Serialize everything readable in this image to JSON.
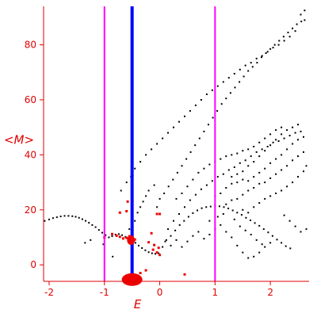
{
  "chart_data": {
    "type": "scatter",
    "title": "",
    "xlabel": "E",
    "ylabel": "<M>",
    "xlim": [
      -2.1,
      2.7
    ],
    "ylim": [
      -6,
      94
    ],
    "x_ticks": [
      -2,
      -1,
      0,
      1,
      2
    ],
    "y_ticks": [
      0,
      20,
      40,
      60,
      80
    ],
    "grid": false,
    "colors": {
      "axes": "#e00000",
      "tick_labels": "#e00000",
      "points_black": "#000000",
      "points_red": "#ee0000",
      "vertical_line_magenta": "#ff00ff",
      "vertical_line_blue": "#0000ff"
    },
    "vertical_lines": [
      {
        "x": -1.0,
        "color": "#ff00ff",
        "style": "thin"
      },
      {
        "x": -0.5,
        "color": "#0000ff",
        "style": "thick"
      },
      {
        "x": 1.0,
        "color": "#ff00ff",
        "style": "thin"
      }
    ],
    "big_red_markers": [
      {
        "x": -0.5,
        "y": -4.5
      },
      {
        "x": -0.52,
        "y": 9
      }
    ],
    "series": [
      {
        "color": "#000000",
        "points": [
          [
            -2.08,
            16
          ],
          [
            -2.0,
            16.5
          ],
          [
            -1.93,
            17
          ],
          [
            -1.86,
            17.3
          ],
          [
            -1.79,
            17.6
          ],
          [
            -1.72,
            17.8
          ],
          [
            -1.65,
            17.8
          ],
          [
            -1.58,
            17.7
          ],
          [
            -1.52,
            17.5
          ],
          [
            -1.46,
            17.1
          ],
          [
            -1.4,
            16.6
          ],
          [
            -1.34,
            16
          ],
          [
            -1.28,
            15.3
          ],
          [
            -1.22,
            14.5
          ],
          [
            -1.16,
            13.7
          ],
          [
            -1.1,
            12.7
          ],
          [
            -1.04,
            11.7
          ],
          [
            -0.98,
            10.8
          ],
          [
            -0.92,
            10
          ],
          [
            -0.86,
            10.4
          ],
          [
            -0.8,
            11
          ],
          [
            -0.74,
            11.2
          ],
          [
            -0.68,
            10.8
          ],
          [
            -0.62,
            10.2
          ],
          [
            -0.56,
            9.4
          ],
          [
            -0.5,
            8.8
          ],
          [
            -0.44,
            8
          ],
          [
            -0.38,
            7
          ],
          [
            -0.32,
            6.1
          ],
          [
            -0.26,
            5.3
          ],
          [
            -0.2,
            4.6
          ],
          [
            -0.14,
            4.2
          ],
          [
            -0.08,
            4
          ],
          [
            -0.02,
            4.2
          ],
          [
            -1.35,
            8
          ],
          [
            -1.25,
            9
          ],
          [
            -0.85,
            3
          ],
          [
            -1.02,
            7.5
          ],
          [
            0.05,
            6.5
          ],
          [
            0.12,
            9
          ],
          [
            0.2,
            10.5
          ],
          [
            0.28,
            12.5
          ],
          [
            0.36,
            14.5
          ],
          [
            0.44,
            16
          ],
          [
            0.52,
            17.5
          ],
          [
            0.6,
            18.8
          ],
          [
            0.68,
            19.8
          ],
          [
            0.76,
            20.6
          ],
          [
            0.84,
            21
          ],
          [
            0.92,
            21.2
          ],
          [
            1.0,
            21.5
          ],
          [
            1.08,
            21.3
          ],
          [
            1.16,
            21
          ],
          [
            1.24,
            20.5
          ],
          [
            1.32,
            19.8
          ],
          [
            1.4,
            19
          ],
          [
            1.48,
            18.2
          ],
          [
            1.56,
            17.1
          ],
          [
            1.64,
            16.2
          ],
          [
            1.72,
            15.2
          ],
          [
            1.8,
            14.2
          ],
          [
            1.88,
            13
          ],
          [
            1.96,
            11.8
          ],
          [
            2.04,
            10.5
          ],
          [
            2.12,
            9.2
          ],
          [
            2.2,
            8
          ],
          [
            2.28,
            6.8
          ],
          [
            2.36,
            6
          ],
          [
            0.1,
            8.5
          ],
          [
            0.2,
            7
          ],
          [
            0.3,
            9
          ],
          [
            0.4,
            6.5
          ],
          [
            0.5,
            8.5
          ],
          [
            0.6,
            10.5
          ],
          [
            0.7,
            12
          ],
          [
            0.8,
            9.5
          ],
          [
            0.9,
            11
          ],
          [
            1.0,
            13
          ],
          [
            1.1,
            14.5
          ],
          [
            1.2,
            12
          ],
          [
            1.3,
            10
          ],
          [
            1.4,
            7
          ],
          [
            1.5,
            4.5
          ],
          [
            1.6,
            2.5
          ],
          [
            1.7,
            3
          ],
          [
            1.8,
            4.5
          ],
          [
            1.9,
            6.5
          ],
          [
            2.0,
            8
          ],
          [
            0.15,
            13
          ],
          [
            0.25,
            16
          ],
          [
            0.35,
            18.5
          ],
          [
            0.45,
            21
          ],
          [
            0.55,
            23.5
          ],
          [
            0.65,
            25.5
          ],
          [
            0.75,
            27.5
          ],
          [
            0.85,
            29
          ],
          [
            0.95,
            30.5
          ],
          [
            1.05,
            32
          ],
          [
            1.15,
            33
          ],
          [
            1.25,
            34.5
          ],
          [
            1.35,
            35.5
          ],
          [
            1.45,
            37
          ],
          [
            1.55,
            38
          ],
          [
            1.65,
            39.5
          ],
          [
            1.75,
            41
          ],
          [
            1.85,
            42
          ],
          [
            1.95,
            43
          ],
          [
            2.05,
            44.5
          ],
          [
            2.15,
            45
          ],
          [
            2.25,
            46
          ],
          [
            2.35,
            47
          ],
          [
            2.45,
            48
          ],
          [
            2.55,
            48.5
          ],
          [
            0.3,
            24
          ],
          [
            0.4,
            26
          ],
          [
            0.5,
            28.5
          ],
          [
            0.6,
            31
          ],
          [
            0.7,
            33.5
          ],
          [
            0.8,
            35
          ],
          [
            0.9,
            36.5
          ],
          [
            1.0,
            37.5
          ],
          [
            1.1,
            38.5
          ],
          [
            1.2,
            39.5
          ],
          [
            1.3,
            40
          ],
          [
            1.4,
            40.5
          ],
          [
            1.5,
            41.5
          ],
          [
            1.6,
            42
          ],
          [
            1.7,
            43
          ],
          [
            1.8,
            44.5
          ],
          [
            1.9,
            46
          ],
          [
            2.0,
            47.5
          ],
          [
            2.1,
            49
          ],
          [
            2.2,
            50
          ],
          [
            1.3,
            32
          ],
          [
            1.4,
            33
          ],
          [
            1.5,
            34
          ],
          [
            1.6,
            36
          ],
          [
            1.7,
            37.5
          ],
          [
            1.8,
            39.5
          ],
          [
            1.9,
            41.5
          ],
          [
            2.0,
            43.5
          ],
          [
            2.1,
            45.5
          ],
          [
            2.2,
            47.5
          ],
          [
            2.3,
            49
          ],
          [
            2.4,
            50
          ],
          [
            2.5,
            51
          ],
          [
            1.0,
            25
          ],
          [
            1.1,
            26
          ],
          [
            1.2,
            28
          ],
          [
            1.3,
            29.5
          ],
          [
            1.4,
            30
          ],
          [
            1.5,
            31
          ],
          [
            1.6,
            30.5
          ],
          [
            1.7,
            32
          ],
          [
            1.8,
            33.5
          ],
          [
            1.9,
            35
          ],
          [
            2.0,
            37
          ],
          [
            2.1,
            38.5
          ],
          [
            2.2,
            40
          ],
          [
            2.3,
            42
          ],
          [
            2.4,
            44
          ],
          [
            2.5,
            45.5
          ],
          [
            2.6,
            46.5
          ],
          [
            1.2,
            22
          ],
          [
            1.3,
            23.5
          ],
          [
            1.4,
            24
          ],
          [
            1.5,
            25.5
          ],
          [
            1.6,
            27
          ],
          [
            1.7,
            28
          ],
          [
            1.8,
            29.5
          ],
          [
            1.9,
            30
          ],
          [
            2.0,
            31.5
          ],
          [
            2.1,
            33
          ],
          [
            2.2,
            34.5
          ],
          [
            2.3,
            36
          ],
          [
            2.4,
            38
          ],
          [
            2.5,
            39.5
          ],
          [
            2.6,
            41
          ],
          [
            1.5,
            20
          ],
          [
            1.6,
            19
          ],
          [
            1.7,
            21
          ],
          [
            1.8,
            22.5
          ],
          [
            1.9,
            24
          ],
          [
            2.0,
            25
          ],
          [
            2.1,
            26
          ],
          [
            2.2,
            27
          ],
          [
            2.3,
            28.5
          ],
          [
            2.4,
            30
          ],
          [
            2.5,
            32
          ],
          [
            2.6,
            34
          ],
          [
            2.65,
            36
          ],
          [
            0.9,
            16
          ],
          [
            1.05,
            17.5
          ],
          [
            1.15,
            18.5
          ],
          [
            1.35,
            16.5
          ],
          [
            1.45,
            14
          ],
          [
            1.55,
            12.5
          ],
          [
            1.65,
            11
          ],
          [
            1.75,
            9
          ],
          [
            1.85,
            7.5
          ],
          [
            2.25,
            18
          ],
          [
            2.35,
            16
          ],
          [
            2.45,
            14
          ],
          [
            2.55,
            12
          ],
          [
            2.65,
            13
          ],
          [
            -0.55,
            13
          ],
          [
            -0.45,
            16
          ],
          [
            -0.4,
            19
          ],
          [
            -0.35,
            21
          ],
          [
            -0.3,
            23
          ],
          [
            -0.25,
            25
          ],
          [
            -0.2,
            27
          ],
          [
            -0.1,
            29
          ],
          [
            -0.05,
            21
          ],
          [
            0.0,
            24
          ],
          [
            0.08,
            26
          ],
          [
            0.16,
            28.5
          ],
          [
            0.24,
            31
          ],
          [
            0.32,
            33.5
          ],
          [
            0.4,
            36
          ],
          [
            0.48,
            38.5
          ],
          [
            0.56,
            41
          ],
          [
            0.64,
            43.5
          ],
          [
            0.72,
            46
          ],
          [
            0.8,
            48.5
          ],
          [
            0.88,
            51
          ],
          [
            0.96,
            53.5
          ],
          [
            1.04,
            56
          ],
          [
            1.12,
            58.5
          ],
          [
            1.2,
            60.5
          ],
          [
            1.28,
            62.5
          ],
          [
            1.36,
            64.5
          ],
          [
            1.44,
            66.5
          ],
          [
            1.52,
            68.5
          ],
          [
            1.6,
            70.5
          ],
          [
            1.68,
            72
          ],
          [
            1.76,
            73.5
          ],
          [
            1.84,
            75.5
          ],
          [
            1.92,
            77
          ],
          [
            2.0,
            78.5
          ],
          [
            2.08,
            80
          ],
          [
            2.16,
            81.5
          ],
          [
            2.24,
            83
          ],
          [
            2.32,
            84.5
          ],
          [
            2.4,
            86
          ],
          [
            2.48,
            87.5
          ],
          [
            2.56,
            88.5
          ],
          [
            2.62,
            89
          ],
          [
            -0.7,
            27
          ],
          [
            -0.6,
            30
          ],
          [
            -0.52,
            32
          ],
          [
            -0.45,
            35
          ],
          [
            -0.35,
            37.5
          ],
          [
            -0.25,
            40
          ],
          [
            -0.15,
            42
          ],
          [
            -0.05,
            44
          ],
          [
            0.05,
            46
          ],
          [
            0.15,
            48
          ],
          [
            0.25,
            50
          ],
          [
            0.35,
            52
          ],
          [
            0.45,
            54
          ],
          [
            0.55,
            56
          ],
          [
            0.65,
            58
          ],
          [
            0.75,
            60
          ],
          [
            0.85,
            62
          ],
          [
            0.95,
            63.5
          ],
          [
            1.05,
            65
          ],
          [
            1.15,
            66.5
          ],
          [
            1.25,
            68
          ],
          [
            1.35,
            69.5
          ],
          [
            1.45,
            71
          ],
          [
            1.55,
            72.5
          ],
          [
            1.65,
            73.5
          ],
          [
            1.75,
            75
          ],
          [
            1.85,
            76
          ],
          [
            1.95,
            77.5
          ],
          [
            2.05,
            79
          ],
          [
            2.15,
            80
          ],
          [
            2.25,
            81.5
          ],
          [
            2.35,
            83
          ],
          [
            2.45,
            85
          ],
          [
            2.55,
            91
          ],
          [
            2.62,
            92.5
          ]
        ]
      },
      {
        "color": "#ee0000",
        "points": [
          [
            -1.0,
            10
          ],
          [
            -0.86,
            11.2
          ],
          [
            -0.78,
            10.6
          ],
          [
            -0.72,
            10.2
          ],
          [
            -0.66,
            9.6
          ],
          [
            -0.6,
            9.8
          ],
          [
            -0.55,
            10.4
          ],
          [
            -0.45,
            9.2
          ],
          [
            -0.2,
            8.2
          ],
          [
            -0.12,
            5.5
          ],
          [
            -0.05,
            4.5
          ],
          [
            0.0,
            3.6
          ],
          [
            -0.1,
            7.2
          ],
          [
            -0.02,
            6.2
          ],
          [
            0.0,
            18.5
          ],
          [
            -0.5,
            22
          ],
          [
            -0.58,
            23
          ],
          [
            -0.6,
            19.5
          ],
          [
            -0.72,
            19
          ],
          [
            -0.15,
            11.5
          ],
          [
            -0.05,
            18.5
          ],
          [
            0.45,
            -3.5
          ],
          [
            -0.25,
            -2
          ],
          [
            -0.35,
            -3
          ]
        ]
      }
    ]
  }
}
